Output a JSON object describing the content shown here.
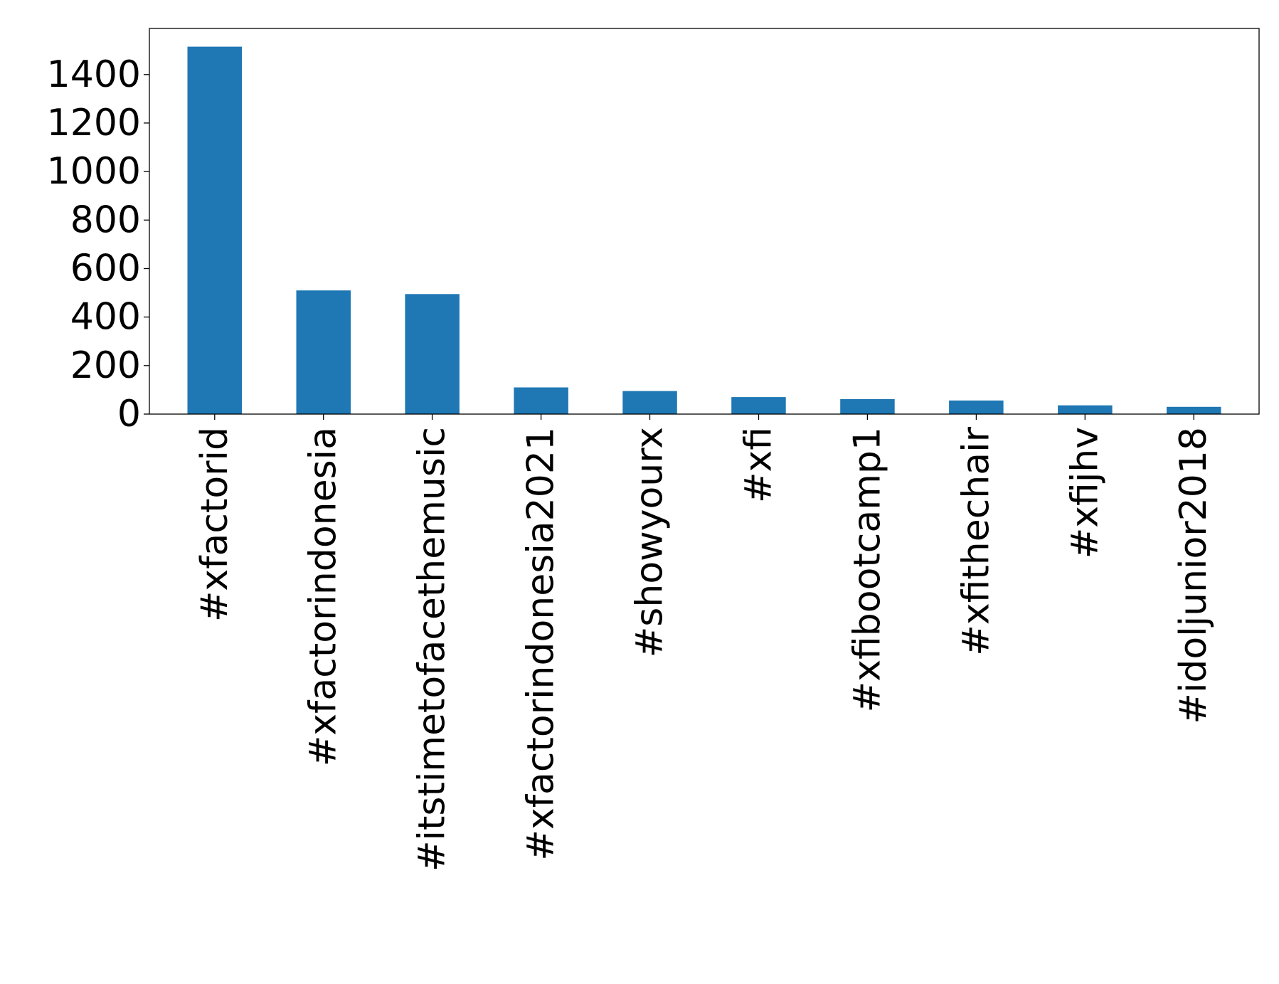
{
  "chart_data": {
    "type": "bar",
    "categories": [
      "#xfactorid",
      "#xfactorindonesia",
      "#itstimetofacethemusic",
      "#xfactorindonesia2021",
      "#showyourx",
      "#xfi",
      "#xfibootcamp1",
      "#xfithechair",
      "#xfijhv",
      "#idoljunior2018"
    ],
    "values": [
      1515,
      510,
      495,
      110,
      95,
      70,
      62,
      56,
      36,
      30
    ],
    "yticks": [
      "0",
      "200",
      "400",
      "600",
      "800",
      "1000",
      "1200",
      "1400"
    ],
    "ylim": [
      0,
      1590
    ],
    "grid": false,
    "legend": "none",
    "bar_color": "#1f77b4"
  }
}
